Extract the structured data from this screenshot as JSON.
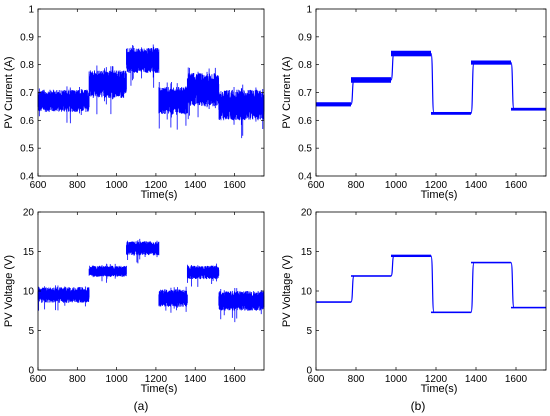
{
  "chart_data": [
    {
      "id": "a_current",
      "type": "line",
      "xlabel": "Time(s)",
      "ylabel": "PV Current (A)",
      "xlim": [
        600,
        1750
      ],
      "ylim": [
        0.4,
        1.0
      ],
      "xticks": [
        600,
        800,
        1000,
        1200,
        1400,
        1600
      ],
      "yticks": [
        0.4,
        0.5,
        0.6,
        0.7,
        0.8,
        0.9,
        1.0
      ],
      "ytick_labels": [
        "0.4",
        "0.5",
        "0.6",
        "0.7",
        "0.8",
        "0.9",
        "1"
      ],
      "color": "#0000ff",
      "noisy": true,
      "segments": [
        {
          "x0": 600,
          "x1": 860,
          "low": 0.63,
          "high": 0.71
        },
        {
          "x0": 860,
          "x1": 1050,
          "low": 0.68,
          "high": 0.78
        },
        {
          "x0": 1050,
          "x1": 1215,
          "low": 0.77,
          "high": 0.86
        },
        {
          "x0": 1215,
          "x1": 1360,
          "low": 0.62,
          "high": 0.72
        },
        {
          "x0": 1360,
          "x1": 1520,
          "low": 0.65,
          "high": 0.77
        },
        {
          "x0": 1520,
          "x1": 1750,
          "low": 0.6,
          "high": 0.71
        }
      ]
    },
    {
      "id": "b_current",
      "type": "line",
      "xlabel": "Time(s)",
      "ylabel": "PV Current (A)",
      "xlim": [
        600,
        1750
      ],
      "ylim": [
        0.4,
        1.0
      ],
      "xticks": [
        600,
        800,
        1000,
        1200,
        1400,
        1600
      ],
      "yticks": [
        0.4,
        0.5,
        0.6,
        0.7,
        0.8,
        0.9,
        1.0
      ],
      "ytick_labels": [
        "0.4",
        "0.5",
        "0.6",
        "0.7",
        "0.8",
        "0.9",
        "1"
      ],
      "color": "#0000ff",
      "noisy": false,
      "segments": [
        {
          "x0": 600,
          "x1": 775,
          "low": 0.65,
          "high": 0.665
        },
        {
          "x0": 775,
          "x1": 975,
          "low": 0.735,
          "high": 0.755
        },
        {
          "x0": 975,
          "x1": 1175,
          "low": 0.83,
          "high": 0.85
        },
        {
          "x0": 1175,
          "x1": 1375,
          "low": 0.62,
          "high": 0.63
        },
        {
          "x0": 1375,
          "x1": 1575,
          "low": 0.8,
          "high": 0.815
        },
        {
          "x0": 1575,
          "x1": 1750,
          "low": 0.635,
          "high": 0.645
        }
      ]
    },
    {
      "id": "a_voltage",
      "type": "line",
      "xlabel": "Time(s)",
      "ylabel": "PV Voltage (V)",
      "xlim": [
        600,
        1750
      ],
      "ylim": [
        0,
        20
      ],
      "xticks": [
        600,
        800,
        1000,
        1200,
        1400,
        1600
      ],
      "yticks": [
        0,
        5,
        10,
        15,
        20
      ],
      "ytick_labels": [
        "0",
        "5",
        "10",
        "15",
        "20"
      ],
      "color": "#0000ff",
      "noisy": true,
      "segments": [
        {
          "x0": 600,
          "x1": 860,
          "low": 8.5,
          "high": 10.5
        },
        {
          "x0": 860,
          "x1": 1050,
          "low": 11.8,
          "high": 13.2
        },
        {
          "x0": 1050,
          "x1": 1215,
          "low": 14.5,
          "high": 16.3
        },
        {
          "x0": 1215,
          "x1": 1360,
          "low": 8.0,
          "high": 10.2
        },
        {
          "x0": 1360,
          "x1": 1520,
          "low": 11.5,
          "high": 13.2
        },
        {
          "x0": 1520,
          "x1": 1750,
          "low": 7.5,
          "high": 10.0
        }
      ]
    },
    {
      "id": "b_voltage",
      "type": "line",
      "xlabel": "Time(s)",
      "ylabel": "PV Voltage (V)",
      "xlim": [
        600,
        1750
      ],
      "ylim": [
        0,
        20
      ],
      "xticks": [
        600,
        800,
        1000,
        1200,
        1400,
        1600
      ],
      "yticks": [
        0,
        5,
        10,
        15,
        20
      ],
      "ytick_labels": [
        "0",
        "5",
        "10",
        "15",
        "20"
      ],
      "color": "#0000ff",
      "noisy": false,
      "segments": [
        {
          "x0": 600,
          "x1": 775,
          "low": 8.5,
          "high": 8.7
        },
        {
          "x0": 775,
          "x1": 975,
          "low": 11.8,
          "high": 12.0
        },
        {
          "x0": 975,
          "x1": 1175,
          "low": 14.3,
          "high": 14.6
        },
        {
          "x0": 1175,
          "x1": 1375,
          "low": 7.2,
          "high": 7.4
        },
        {
          "x0": 1375,
          "x1": 1575,
          "low": 13.5,
          "high": 13.7
        },
        {
          "x0": 1575,
          "x1": 1750,
          "low": 7.8,
          "high": 8.0
        }
      ]
    }
  ],
  "panel_labels": [
    "(a)",
    "(b)"
  ]
}
